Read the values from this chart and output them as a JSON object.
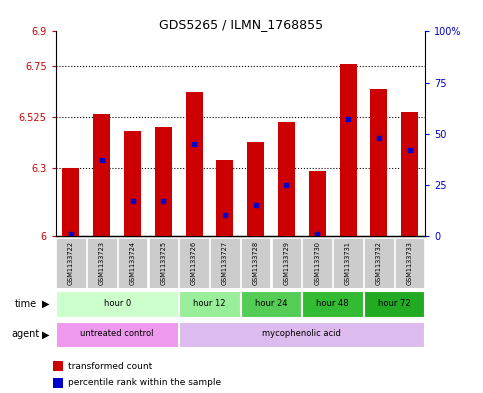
{
  "title": "GDS5265 / ILMN_1768855",
  "samples": [
    "GSM1133722",
    "GSM1133723",
    "GSM1133724",
    "GSM1133725",
    "GSM1133726",
    "GSM1133727",
    "GSM1133728",
    "GSM1133729",
    "GSM1133730",
    "GSM1133731",
    "GSM1133732",
    "GSM1133733"
  ],
  "bar_values": [
    6.3,
    6.535,
    6.46,
    6.48,
    6.635,
    6.335,
    6.415,
    6.5,
    6.285,
    6.755,
    6.645,
    6.545
  ],
  "percentile_values": [
    1,
    37,
    17,
    17,
    45,
    10,
    15,
    25,
    1,
    57,
    48,
    42
  ],
  "bar_bottom": 6.0,
  "ylim": [
    6.0,
    6.9
  ],
  "y_ticks": [
    6.0,
    6.3,
    6.525,
    6.75,
    6.9
  ],
  "y_tick_labels": [
    "6",
    "6.3",
    "6.525",
    "6.75",
    "6.9"
  ],
  "right_yticks": [
    0,
    25,
    50,
    75,
    100
  ],
  "right_ytick_labels": [
    "0",
    "25",
    "50",
    "75",
    "100%"
  ],
  "bar_color": "#cc0000",
  "marker_color": "#0000cc",
  "bar_width": 0.55,
  "time_groups": [
    {
      "label": "hour 0",
      "start": 0,
      "end": 3,
      "color": "#ccffcc"
    },
    {
      "label": "hour 12",
      "start": 4,
      "end": 5,
      "color": "#99ee99"
    },
    {
      "label": "hour 24",
      "start": 6,
      "end": 7,
      "color": "#55cc55"
    },
    {
      "label": "hour 48",
      "start": 8,
      "end": 9,
      "color": "#33bb33"
    },
    {
      "label": "hour 72",
      "start": 10,
      "end": 11,
      "color": "#22aa22"
    }
  ],
  "agent_groups": [
    {
      "label": "untreated control",
      "start": 0,
      "end": 3,
      "color": "#ee99ee"
    },
    {
      "label": "mycophenolic acid",
      "start": 4,
      "end": 11,
      "color": "#ddbbee"
    }
  ],
  "sample_bg_color": "#cccccc",
  "left_axis_color": "#cc0000",
  "right_axis_color": "#0000cc"
}
